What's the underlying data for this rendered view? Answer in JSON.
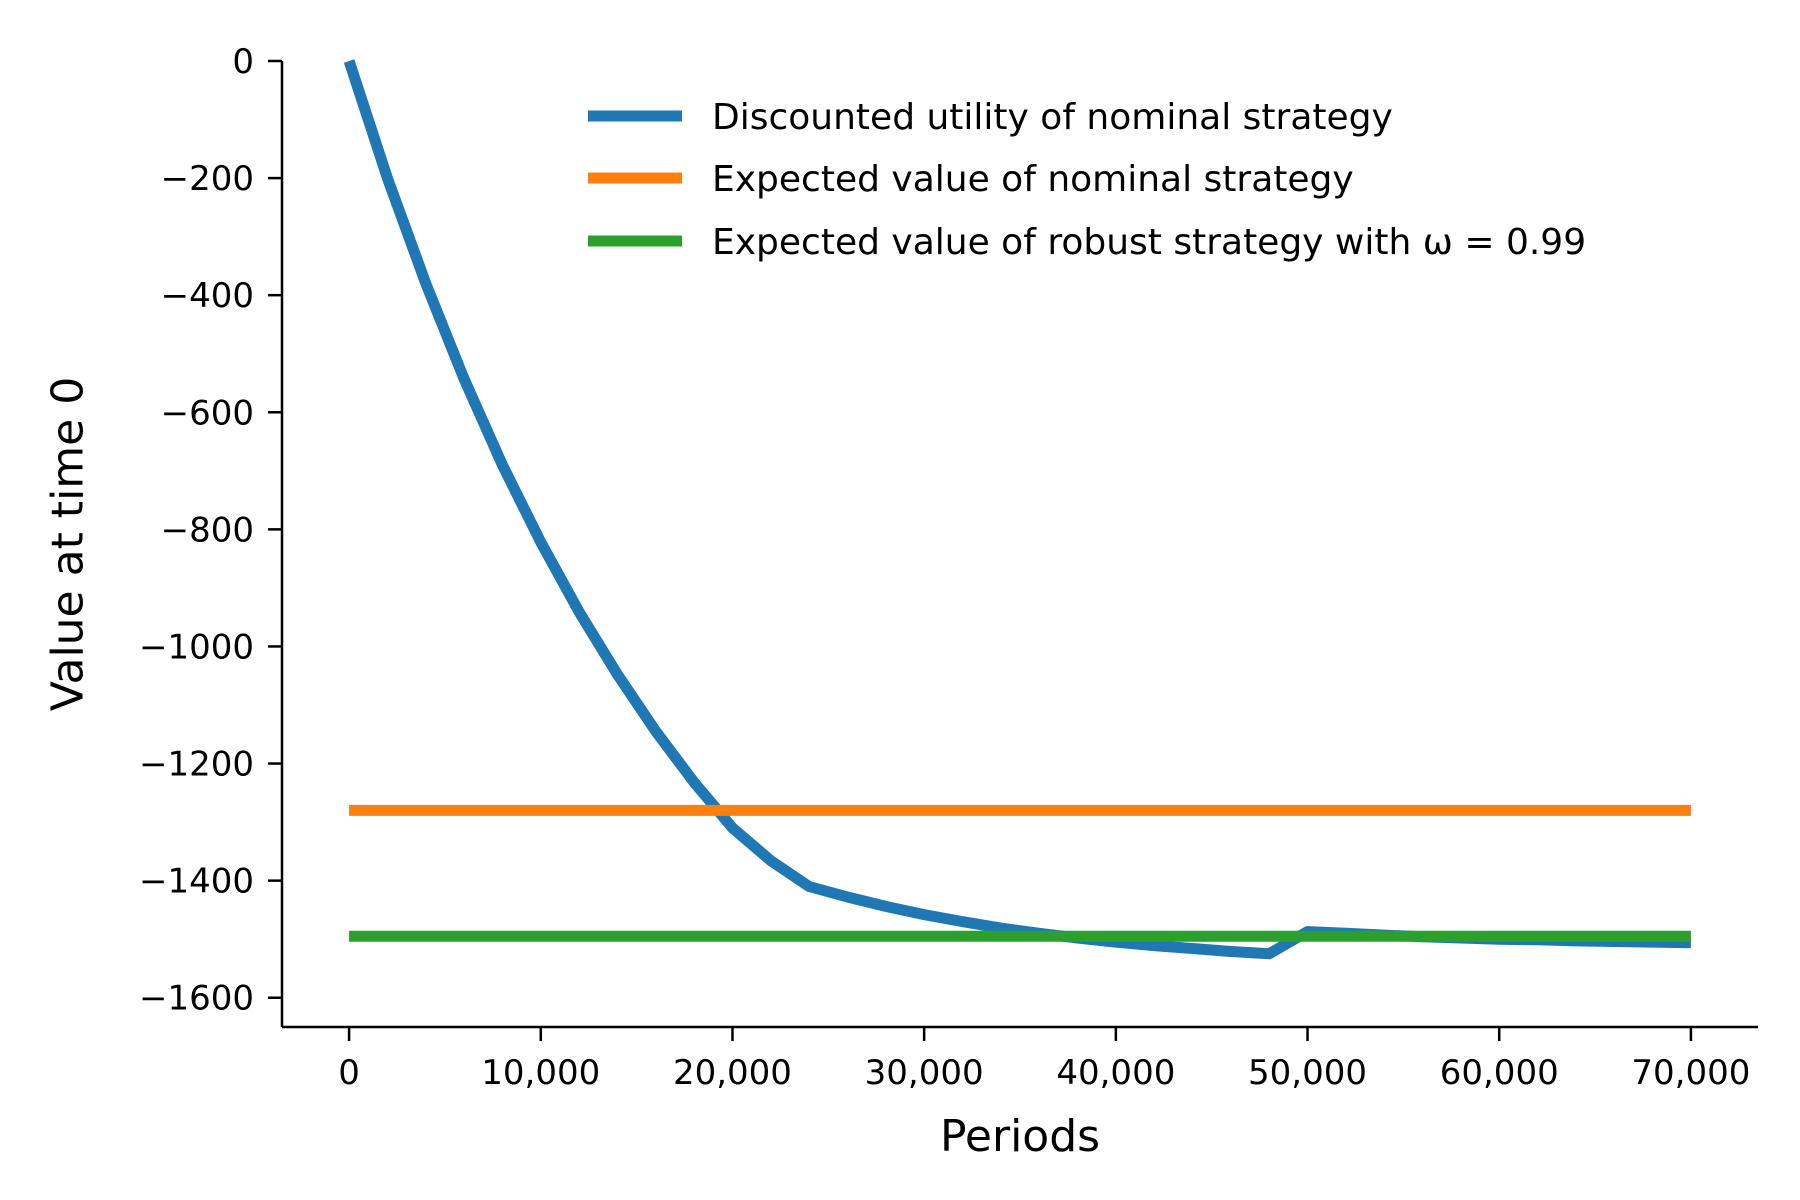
{
  "chart_data": {
    "type": "line",
    "title": "",
    "xlabel": "Periods",
    "ylabel": "Value at time 0",
    "xlim": [
      -3500,
      73500
    ],
    "ylim": [
      -1650,
      0
    ],
    "x_ticks": [
      0,
      10000,
      20000,
      30000,
      40000,
      50000,
      60000,
      70000
    ],
    "x_tick_labels": [
      "0",
      "10,000",
      "20,000",
      "30,000",
      "40,000",
      "50,000",
      "60,000",
      "70,000"
    ],
    "y_ticks": [
      0,
      -200,
      -400,
      -600,
      -800,
      -1000,
      -1200,
      -1400,
      -1600
    ],
    "y_tick_labels": [
      "0",
      "−200",
      "−400",
      "−600",
      "−800",
      "−1000",
      "−1200",
      "−1400",
      "−1600"
    ],
    "grid": false,
    "legend_position": "top-right",
    "series": [
      {
        "name": "Discounted utility of nominal strategy",
        "color": "#1f77b4",
        "x": [
          0,
          2000,
          4000,
          6000,
          8000,
          10000,
          12000,
          14000,
          16000,
          18000,
          20000,
          22000,
          24000,
          26000,
          28000,
          30000,
          32000,
          34000,
          36000,
          38000,
          40000,
          42000,
          44000,
          46000,
          48000,
          50000,
          52000,
          54000,
          56000,
          58000,
          60000,
          62000,
          64000,
          66000,
          68000,
          70000
        ],
        "y": [
          0,
          -200,
          -380,
          -543,
          -690,
          -822,
          -941,
          -1048,
          -1145,
          -1232,
          -1310,
          -1366,
          -1410,
          -1428,
          -1444,
          -1458,
          -1470,
          -1481,
          -1490,
          -1498,
          -1505,
          -1511,
          -1516,
          -1521,
          -1525,
          -1487,
          -1490,
          -1493,
          -1496,
          -1498,
          -1500,
          -1501,
          -1503,
          -1504,
          -1505,
          -1506
        ]
      },
      {
        "name": "Expected value of nominal strategy",
        "color": "#ff7f0e",
        "x": [
          0,
          70000
        ],
        "y": [
          -1280,
          -1280
        ]
      },
      {
        "name": "Expected value of robust strategy with ω = 0.99",
        "color": "#2ca02c",
        "x": [
          0,
          70000
        ],
        "y": [
          -1495,
          -1495
        ]
      }
    ]
  }
}
